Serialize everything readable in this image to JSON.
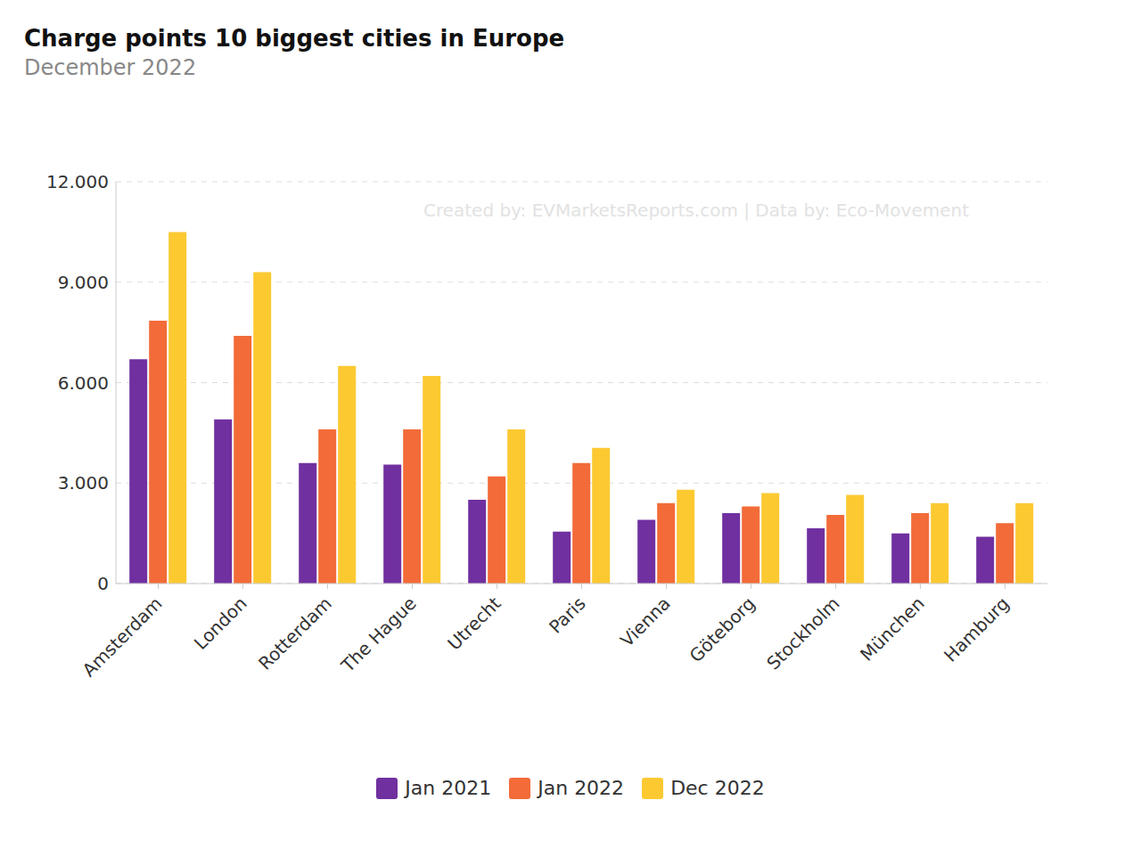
{
  "chart_data": {
    "type": "bar",
    "title": "Charge points 10 biggest cities in Europe",
    "subtitle": "December 2022",
    "annotation": "Created by: EVMarketsReports.com | Data by: Eco-Movement",
    "categories": [
      "Amsterdam",
      "London",
      "Rotterdam",
      "The Hague",
      "Utrecht",
      "Paris",
      "Vienna",
      "Göteborg",
      "Stockholm",
      "München",
      "Hamburg"
    ],
    "series": [
      {
        "name": "Jan 2021",
        "color": "#7030a0",
        "values": [
          6700,
          4900,
          3600,
          3550,
          2500,
          1550,
          1900,
          2100,
          1650,
          1500,
          1400
        ]
      },
      {
        "name": "Jan 2022",
        "color": "#f26b38",
        "values": [
          7850,
          7400,
          4600,
          4600,
          3200,
          3600,
          2400,
          2300,
          2050,
          2100,
          1800
        ]
      },
      {
        "name": "Dec 2022",
        "color": "#fcc931",
        "values": [
          10500,
          9300,
          6500,
          6200,
          4600,
          4050,
          2800,
          2700,
          2650,
          2400,
          2400
        ]
      }
    ],
    "ylim": [
      0,
      12000
    ],
    "yticks": [
      0,
      {
        "value": 3000,
        "label": "3.000"
      },
      {
        "value": 6000,
        "label": "6.000"
      },
      {
        "value": 9000,
        "label": "9.000"
      },
      {
        "value": 12000,
        "label": "12.000"
      }
    ],
    "grid": true,
    "legend": "bottom"
  }
}
